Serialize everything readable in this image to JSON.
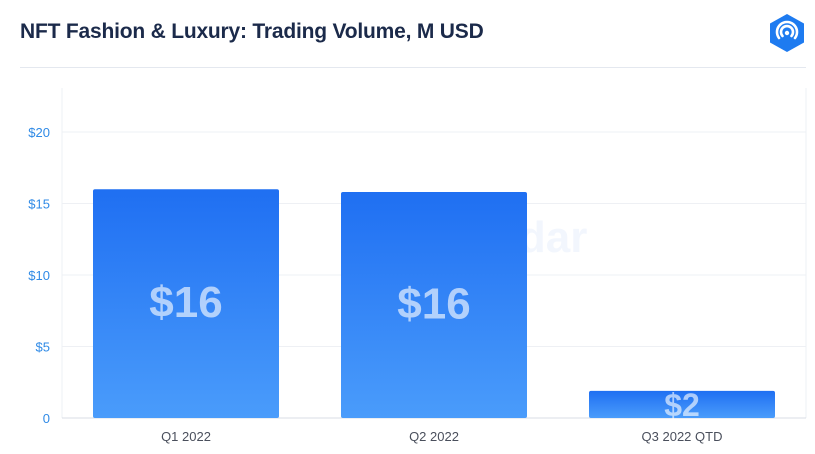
{
  "header": {
    "title": "NFT Fashion & Luxury: Trading Volume, M USD",
    "logo_icon": "dappradar-logo-icon"
  },
  "watermark": "DappRadar",
  "colors": {
    "bar_top": "#1f6ff2",
    "bar_bottom": "#4a9cfb",
    "axis_text": "#2f8ae6",
    "title": "#1b2a4a"
  },
  "chart_data": {
    "type": "bar",
    "title": "NFT Fashion & Luxury: Trading Volume, M USD",
    "categories": [
      "Q1 2022",
      "Q2 2022",
      "Q3 2022 QTD"
    ],
    "values": [
      16,
      15.8,
      1.9
    ],
    "data_labels": [
      "$16",
      "$16",
      "$2"
    ],
    "y_ticks": [
      0,
      5,
      10,
      15,
      20
    ],
    "y_tick_labels": [
      "0",
      "$5",
      "$10",
      "$15",
      "$20"
    ],
    "ylim": [
      0,
      20
    ],
    "grid": true,
    "legend": "none"
  }
}
